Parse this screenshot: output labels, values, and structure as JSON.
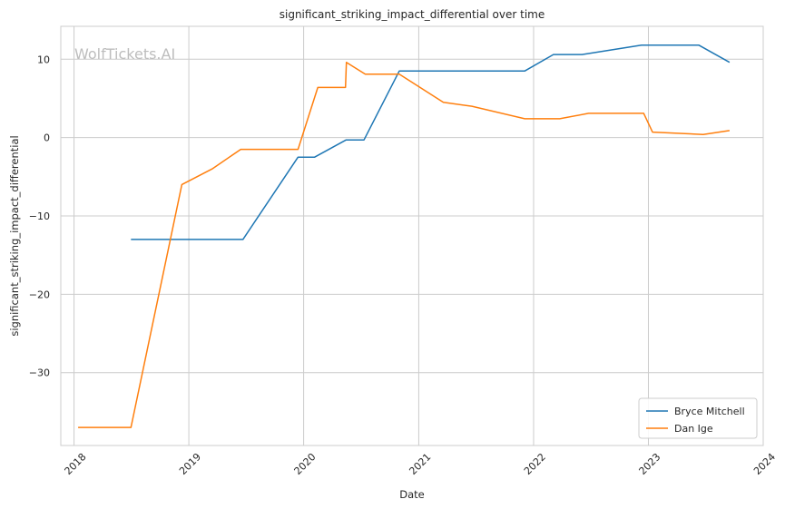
{
  "chart_data": {
    "type": "line",
    "title": "significant_striking_impact_differential over time",
    "xlabel": "Date",
    "ylabel": "significant_striking_impact_differential",
    "watermark": "WolfTickets.AI",
    "x_ticks": [
      "2018",
      "2019",
      "2020",
      "2021",
      "2022",
      "2023",
      "2024"
    ],
    "y_ticks": [
      10,
      0,
      -10,
      -20,
      -30
    ],
    "y_tick_labels": [
      "10",
      "0",
      "−10",
      "−20",
      "−30"
    ],
    "xlim": [
      "2017-11-20",
      "2024-01-01"
    ],
    "ylim": [
      -39.3,
      14.2
    ],
    "grid": true,
    "legend_position": "lower-right",
    "series": [
      {
        "name": "Bryce Mitchell",
        "color": "#1f77b4",
        "points": [
          [
            "2018-07-01",
            -13.0
          ],
          [
            "2019-06-22",
            -13.0
          ],
          [
            "2019-12-14",
            -2.5
          ],
          [
            "2020-02-05",
            -2.5
          ],
          [
            "2020-05-15",
            -0.3
          ],
          [
            "2020-07-11",
            -0.3
          ],
          [
            "2020-10-31",
            8.5
          ],
          [
            "2021-12-04",
            8.5
          ],
          [
            "2022-03-05",
            10.6
          ],
          [
            "2022-06-04",
            10.6
          ],
          [
            "2022-12-10",
            11.8
          ],
          [
            "2023-06-10",
            11.8
          ],
          [
            "2023-09-16",
            9.6
          ]
        ]
      },
      {
        "name": "Dan Ige",
        "color": "#ff7f0e",
        "points": [
          [
            "2018-01-14",
            -37.0
          ],
          [
            "2018-07-01",
            -37.0
          ],
          [
            "2018-12-10",
            -6.0
          ],
          [
            "2019-03-16",
            -4.0
          ],
          [
            "2019-06-15",
            -1.5
          ],
          [
            "2019-12-14",
            -1.5
          ],
          [
            "2020-02-15",
            6.4
          ],
          [
            "2020-05-13",
            6.4
          ],
          [
            "2020-05-16",
            9.6
          ],
          [
            "2020-07-15",
            8.1
          ],
          [
            "2020-10-31",
            8.1
          ],
          [
            "2021-03-20",
            4.5
          ],
          [
            "2021-06-19",
            4.0
          ],
          [
            "2021-12-04",
            2.4
          ],
          [
            "2022-03-25",
            2.4
          ],
          [
            "2022-06-25",
            3.1
          ],
          [
            "2022-12-17",
            3.1
          ],
          [
            "2023-01-14",
            0.7
          ],
          [
            "2023-06-24",
            0.4
          ],
          [
            "2023-09-16",
            0.9
          ]
        ]
      }
    ]
  }
}
